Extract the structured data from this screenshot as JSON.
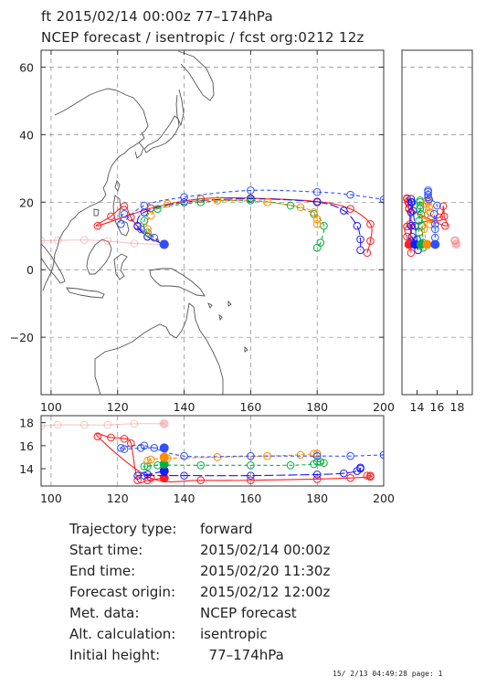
{
  "title_line1": "ft 2015/02/14 00:00z   77–174hPa",
  "title_line2": "NCEP forecast  /  isentropic  /  fcst org:0212  12z",
  "map": {
    "lon_ticks": [
      "100",
      "120",
      "140",
      "160",
      "180",
      "200"
    ],
    "lat_ticks": [
      "60",
      "40",
      "20",
      "0",
      "−20"
    ],
    "side_ticks": [
      "14",
      "16",
      "18"
    ],
    "bottom_ticks": [
      "18",
      "16",
      "14"
    ],
    "lon_range": [
      97,
      200
    ],
    "lat_range": [
      -37,
      65
    ],
    "side_range": [
      12.5,
      19.5
    ],
    "bottom_range": [
      12.5,
      18.6
    ],
    "grid": true
  },
  "trajectories": [
    {
      "color": "#f08080",
      "label": "pink",
      "pts": [
        [
          134,
          7.5,
          17.9
        ],
        [
          125,
          7.8,
          17.9
        ],
        [
          117,
          8.5,
          17.8
        ],
        [
          110,
          8.8,
          17.8
        ],
        [
          102,
          8.7,
          17.8
        ],
        [
          97,
          8.6,
          17.7
        ]
      ]
    },
    {
      "color": "#ff2020",
      "label": "red",
      "pts": [
        [
          134,
          7.5,
          13.2
        ],
        [
          129,
          9.8,
          13.0
        ],
        [
          126,
          12.8,
          13.0
        ],
        [
          124,
          15.5,
          16.2
        ],
        [
          122,
          18.8,
          16.6
        ],
        [
          118,
          15.8,
          16.7
        ],
        [
          114,
          13.0,
          16.8
        ],
        [
          130,
          18.2,
          13.2
        ],
        [
          145,
          21.0,
          13.0
        ],
        [
          160,
          21.2,
          13.0
        ],
        [
          180,
          20.2,
          13.1
        ],
        [
          190,
          18.0,
          13.2
        ],
        [
          196,
          13.5,
          13.3
        ],
        [
          196,
          8.5,
          13.4
        ],
        [
          195,
          5.0,
          13.4
        ]
      ]
    },
    {
      "color": "#1a1aff",
      "label": "navy",
      "pts": [
        [
          134,
          7.5,
          13.8
        ],
        [
          129,
          9.8,
          13.5
        ],
        [
          126,
          13.0,
          13.4
        ],
        [
          128,
          17.0,
          13.4
        ],
        [
          140,
          20.0,
          13.4
        ],
        [
          160,
          21.0,
          13.4
        ],
        [
          180,
          20.0,
          13.5
        ],
        [
          188,
          17.5,
          13.6
        ],
        [
          192,
          13.0,
          13.8
        ],
        [
          193,
          9.0,
          14.0
        ],
        [
          193,
          5.8,
          14.1
        ]
      ]
    },
    {
      "color": "#00b040",
      "label": "green",
      "pts": [
        [
          134,
          7.5,
          14.4
        ],
        [
          129,
          11.0,
          14.2
        ],
        [
          128,
          14.5,
          14.2
        ],
        [
          132,
          18.0,
          14.3
        ],
        [
          145,
          20.0,
          14.3
        ],
        [
          160,
          20.5,
          14.3
        ],
        [
          172,
          19.0,
          14.3
        ],
        [
          179,
          16.5,
          14.4
        ],
        [
          182,
          13.0,
          14.5
        ],
        [
          181,
          8.0,
          14.6
        ],
        [
          180,
          6.5,
          14.6
        ]
      ]
    },
    {
      "color": "#ff8c00",
      "label": "orange",
      "pts": [
        [
          134,
          7.5,
          15.0
        ],
        [
          129,
          12.0,
          14.7
        ],
        [
          130,
          16.0,
          14.8
        ],
        [
          135,
          19.5,
          14.9
        ],
        [
          150,
          20.5,
          15.0
        ],
        [
          165,
          20.0,
          15.1
        ],
        [
          175,
          18.5,
          15.2
        ],
        [
          179,
          17.0,
          15.3
        ],
        [
          180,
          15.0,
          15.3
        ],
        [
          180,
          13.5,
          15.3
        ]
      ]
    },
    {
      "color": "#3050ff",
      "label": "blue",
      "pts": [
        [
          134,
          7.5,
          15.8
        ],
        [
          131,
          9.5,
          15.8
        ],
        [
          127,
          12.0,
          15.8
        ],
        [
          122,
          16.5,
          15.7
        ],
        [
          121,
          13.5,
          15.8
        ],
        [
          128,
          19.0,
          16.0
        ],
        [
          140,
          21.5,
          15.1
        ],
        [
          160,
          23.5,
          15.1
        ],
        [
          180,
          23.0,
          15.1
        ],
        [
          190,
          22.2,
          15.1
        ],
        [
          200,
          20.8,
          15.2
        ]
      ]
    }
  ],
  "info": [
    {
      "label": "Trajectory type:",
      "value": "forward"
    },
    {
      "label": "Start time:",
      "value": "2015/02/14 00:00z"
    },
    {
      "label": "End time:",
      "value": "2015/02/20 11:30z"
    },
    {
      "label": "Forecast origin:",
      "value": "2015/02/12 12:00z"
    },
    {
      "label": "Met. data:",
      "value": "NCEP forecast"
    },
    {
      "label": "Alt. calculation:",
      "value": "isentropic"
    },
    {
      "label": "Initial height:",
      "value": "  77–174hPa"
    }
  ],
  "footer": "15/ 2/13 04:49:28 page: 1"
}
